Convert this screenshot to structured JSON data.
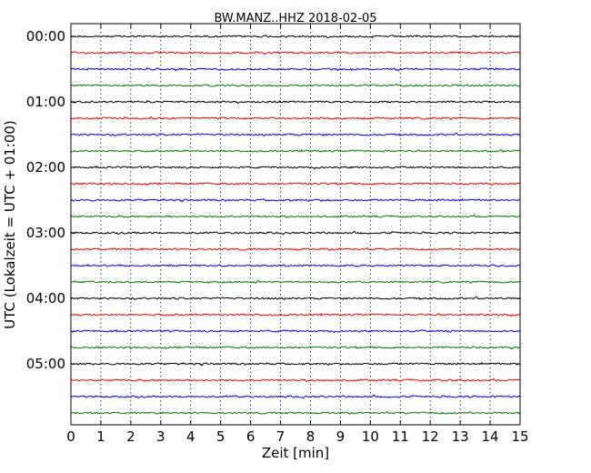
{
  "chart_data": {
    "type": "line",
    "title": "BW.MANZ..HHZ 2018-02-05",
    "xlabel": "Zeit  [min]",
    "ylabel": "UTC (Lokalzeit = UTC + 01:00)",
    "xlim": [
      0,
      15
    ],
    "x_ticks": [
      "0",
      "1",
      "2",
      "3",
      "4",
      "5",
      "6",
      "7",
      "8",
      "9",
      "10",
      "11",
      "12",
      "13",
      "14",
      "15"
    ],
    "y_ticks": [
      "00:00",
      "01:00",
      "02:00",
      "03:00",
      "04:00",
      "05:00"
    ],
    "grid": "vertical dotted",
    "trace_colors": [
      "#000000",
      "#ff0000",
      "#0000ff",
      "#008000"
    ],
    "trace_interval_min": 15,
    "trace_count": 24,
    "traces": [
      {
        "start": "00:00",
        "color": "#000000"
      },
      {
        "start": "00:15",
        "color": "#ff0000"
      },
      {
        "start": "00:30",
        "color": "#0000ff"
      },
      {
        "start": "00:45",
        "color": "#008000"
      },
      {
        "start": "01:00",
        "color": "#000000"
      },
      {
        "start": "01:15",
        "color": "#ff0000"
      },
      {
        "start": "01:30",
        "color": "#0000ff"
      },
      {
        "start": "01:45",
        "color": "#008000"
      },
      {
        "start": "02:00",
        "color": "#000000"
      },
      {
        "start": "02:15",
        "color": "#ff0000"
      },
      {
        "start": "02:30",
        "color": "#0000ff"
      },
      {
        "start": "02:45",
        "color": "#008000"
      },
      {
        "start": "03:00",
        "color": "#000000"
      },
      {
        "start": "03:15",
        "color": "#ff0000"
      },
      {
        "start": "03:30",
        "color": "#0000ff"
      },
      {
        "start": "03:45",
        "color": "#008000"
      },
      {
        "start": "04:00",
        "color": "#000000"
      },
      {
        "start": "04:15",
        "color": "#ff0000"
      },
      {
        "start": "04:30",
        "color": "#0000ff"
      },
      {
        "start": "04:45",
        "color": "#008000"
      },
      {
        "start": "05:00",
        "color": "#000000"
      },
      {
        "start": "05:15",
        "color": "#ff0000"
      },
      {
        "start": "05:30",
        "color": "#0000ff"
      },
      {
        "start": "05:45",
        "color": "#008000"
      }
    ]
  }
}
